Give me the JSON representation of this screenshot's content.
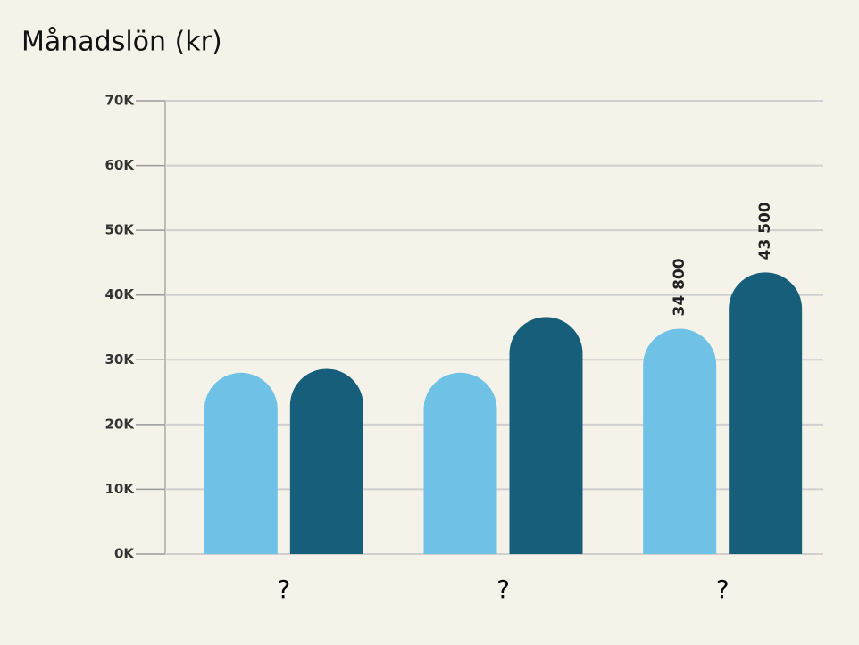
{
  "chart_data": {
    "type": "bar",
    "title": "Månadslön (kr)",
    "categories": [
      "?",
      "?",
      "?"
    ],
    "series": [
      {
        "color": "#6fc1e6",
        "values": [
          28000,
          28000,
          34800
        ],
        "value_labels": [
          null,
          null,
          "34 800"
        ]
      },
      {
        "color": "#175e7b",
        "values": [
          28600,
          36600,
          43500
        ],
        "value_labels": [
          null,
          null,
          "43 500"
        ]
      }
    ],
    "ylim": [
      0,
      70000
    ],
    "yticks": [
      {
        "value": 0,
        "label": "0K"
      },
      {
        "value": 10000,
        "label": "10K"
      },
      {
        "value": 20000,
        "label": "20K"
      },
      {
        "value": 30000,
        "label": "30K"
      },
      {
        "value": 40000,
        "label": "40K"
      },
      {
        "value": 50000,
        "label": "50K"
      },
      {
        "value": 60000,
        "label": "60K"
      },
      {
        "value": 70000,
        "label": "70K"
      }
    ],
    "grid": true
  }
}
